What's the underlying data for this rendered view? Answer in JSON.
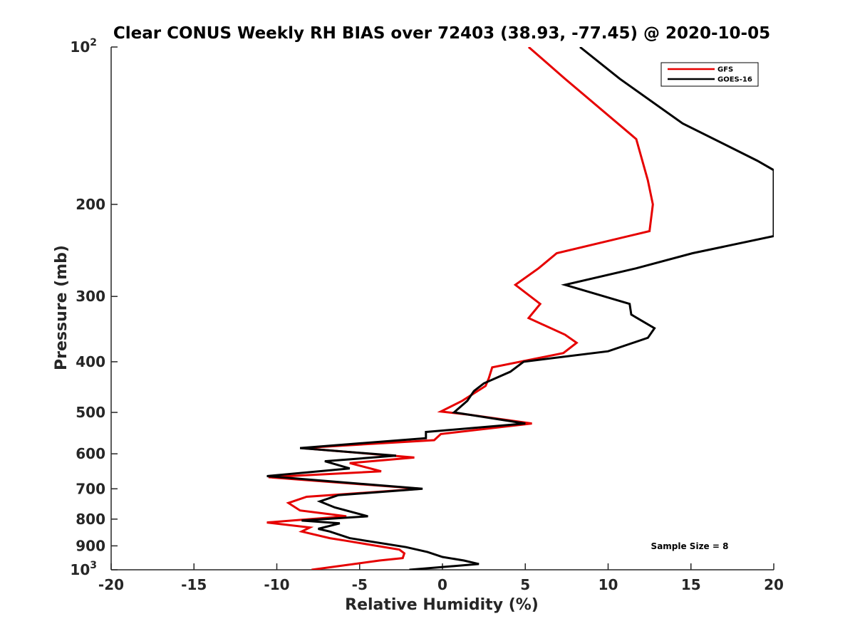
{
  "chart_data": {
    "type": "line",
    "title": "Clear CONUS Weekly RH BIAS over 72403 (38.93, -77.45) @ 2020-10-05",
    "xlabel": "Relative Humidity (%)",
    "ylabel": "Pressure (mb)",
    "xlim": [
      -20,
      20
    ],
    "ylim": [
      1000,
      100
    ],
    "y_scale": "log",
    "y_reversed": true,
    "x_ticks": [
      "-20",
      "-15",
      "-10",
      "-5",
      "0",
      "5",
      "10",
      "15",
      "20"
    ],
    "y_ticks": [
      {
        "value": 100,
        "base": "10",
        "exp": "2"
      },
      {
        "value": 200,
        "base": "200",
        "exp": ""
      },
      {
        "value": 300,
        "base": "300",
        "exp": ""
      },
      {
        "value": 400,
        "base": "400",
        "exp": ""
      },
      {
        "value": 500,
        "base": "500",
        "exp": ""
      },
      {
        "value": 600,
        "base": "600",
        "exp": ""
      },
      {
        "value": 700,
        "base": "700",
        "exp": ""
      },
      {
        "value": 800,
        "base": "800",
        "exp": ""
      },
      {
        "value": 900,
        "base": "900",
        "exp": ""
      },
      {
        "value": 1000,
        "base": "10",
        "exp": "3"
      }
    ],
    "grid": false,
    "legend_position": "top-right",
    "annotation": "Sample Size = 8",
    "series": [
      {
        "name": "GFS",
        "color": "#e60000",
        "points": [
          [
            5.2,
            100
          ],
          [
            7.4,
            115
          ],
          [
            11.7,
            150
          ],
          [
            12.4,
            180
          ],
          [
            12.7,
            200
          ],
          [
            12.5,
            225
          ],
          [
            6.9,
            248
          ],
          [
            5.8,
            265
          ],
          [
            4.4,
            285
          ],
          [
            5.9,
            310
          ],
          [
            5.2,
            330
          ],
          [
            7.4,
            355
          ],
          [
            8.1,
            368
          ],
          [
            7.3,
            385
          ],
          [
            3.0,
            410
          ],
          [
            2.8,
            430
          ],
          [
            2.6,
            445
          ],
          [
            1.2,
            475
          ],
          [
            -0.1,
            498
          ],
          [
            1.6,
            505
          ],
          [
            5.4,
            525
          ],
          [
            -0.1,
            550
          ],
          [
            -0.5,
            565
          ],
          [
            -8.5,
            585
          ],
          [
            -1.7,
            610
          ],
          [
            -5.6,
            625
          ],
          [
            -3.7,
            648
          ],
          [
            -10.5,
            665
          ],
          [
            -1.3,
            700
          ],
          [
            -8.2,
            725
          ],
          [
            -9.3,
            745
          ],
          [
            -8.6,
            770
          ],
          [
            -5.8,
            790
          ],
          [
            -10.6,
            812
          ],
          [
            -8.0,
            830
          ],
          [
            -8.5,
            845
          ],
          [
            -6.8,
            870
          ],
          [
            -5.8,
            880
          ],
          [
            -2.6,
            915
          ],
          [
            -2.3,
            930
          ],
          [
            -2.4,
            950
          ],
          [
            -3.8,
            960
          ],
          [
            -7.9,
            1000
          ]
        ]
      },
      {
        "name": "GOES-16",
        "color": "#000000",
        "points": [
          [
            8.3,
            100
          ],
          [
            10.7,
            115
          ],
          [
            14.5,
            140
          ],
          [
            19.0,
            165
          ],
          [
            20.0,
            172
          ],
          [
            20.0,
            230
          ],
          [
            15.1,
            248
          ],
          [
            11.7,
            265
          ],
          [
            7.4,
            285
          ],
          [
            11.3,
            310
          ],
          [
            11.4,
            325
          ],
          [
            12.8,
            345
          ],
          [
            12.4,
            360
          ],
          [
            10.0,
            382
          ],
          [
            4.9,
            400
          ],
          [
            4.1,
            418
          ],
          [
            2.5,
            440
          ],
          [
            1.9,
            455
          ],
          [
            1.5,
            475
          ],
          [
            0.7,
            500
          ],
          [
            5.0,
            525
          ],
          [
            -1.0,
            545
          ],
          [
            -1.0,
            560
          ],
          [
            -8.6,
            585
          ],
          [
            -2.8,
            605
          ],
          [
            -7.1,
            620
          ],
          [
            -5.6,
            640
          ],
          [
            -10.6,
            662
          ],
          [
            -1.2,
            700
          ],
          [
            -6.3,
            720
          ],
          [
            -7.4,
            740
          ],
          [
            -6.5,
            760
          ],
          [
            -4.5,
            790
          ],
          [
            -8.5,
            805
          ],
          [
            -6.2,
            815
          ],
          [
            -7.5,
            835
          ],
          [
            -6.8,
            845
          ],
          [
            -5.6,
            870
          ],
          [
            -2.2,
            905
          ],
          [
            -0.9,
            925
          ],
          [
            0.0,
            945
          ],
          [
            1.3,
            960
          ],
          [
            2.2,
            975
          ],
          [
            -2.0,
            1000
          ]
        ]
      }
    ]
  }
}
